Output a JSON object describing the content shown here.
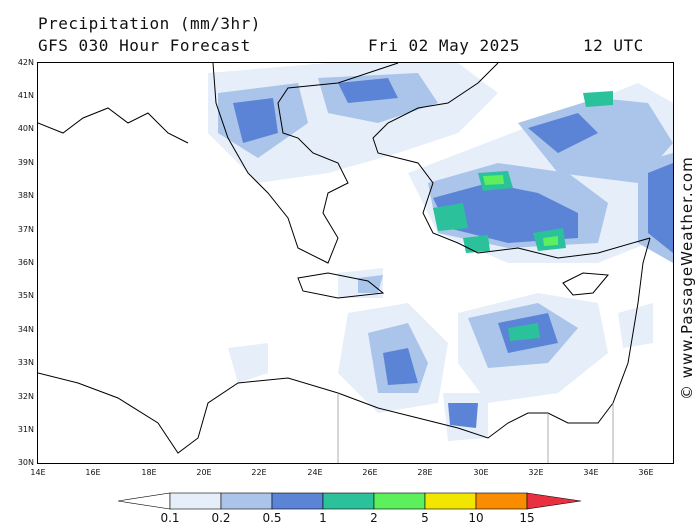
{
  "header": {
    "title": "Precipitation (mm/3hr)",
    "subtitle": "GFS 030 Hour Forecast",
    "date": "Fri 02 May 2025",
    "time": "12 UTC"
  },
  "credit": "© www.PassageWeather.com",
  "axes": {
    "lat_labels": [
      "42N",
      "41N",
      "40N",
      "39N",
      "38N",
      "37N",
      "36N",
      "35N",
      "34N",
      "33N",
      "32N",
      "31N",
      "30N"
    ],
    "lon_labels": [
      "14E",
      "16E",
      "18E",
      "20E",
      "22E",
      "24E",
      "26E",
      "28E",
      "30E",
      "32E",
      "34E",
      "36E"
    ]
  },
  "legend": {
    "labels": [
      "0.1",
      "0.2",
      "0.5",
      "1",
      "2",
      "5",
      "10",
      "15"
    ],
    "colors": [
      "#e6eefa",
      "#aac4ea",
      "#5b84d6",
      "#2bc19a",
      "#5cf05c",
      "#f2e600",
      "#fa8c00",
      "#e83040"
    ]
  }
}
